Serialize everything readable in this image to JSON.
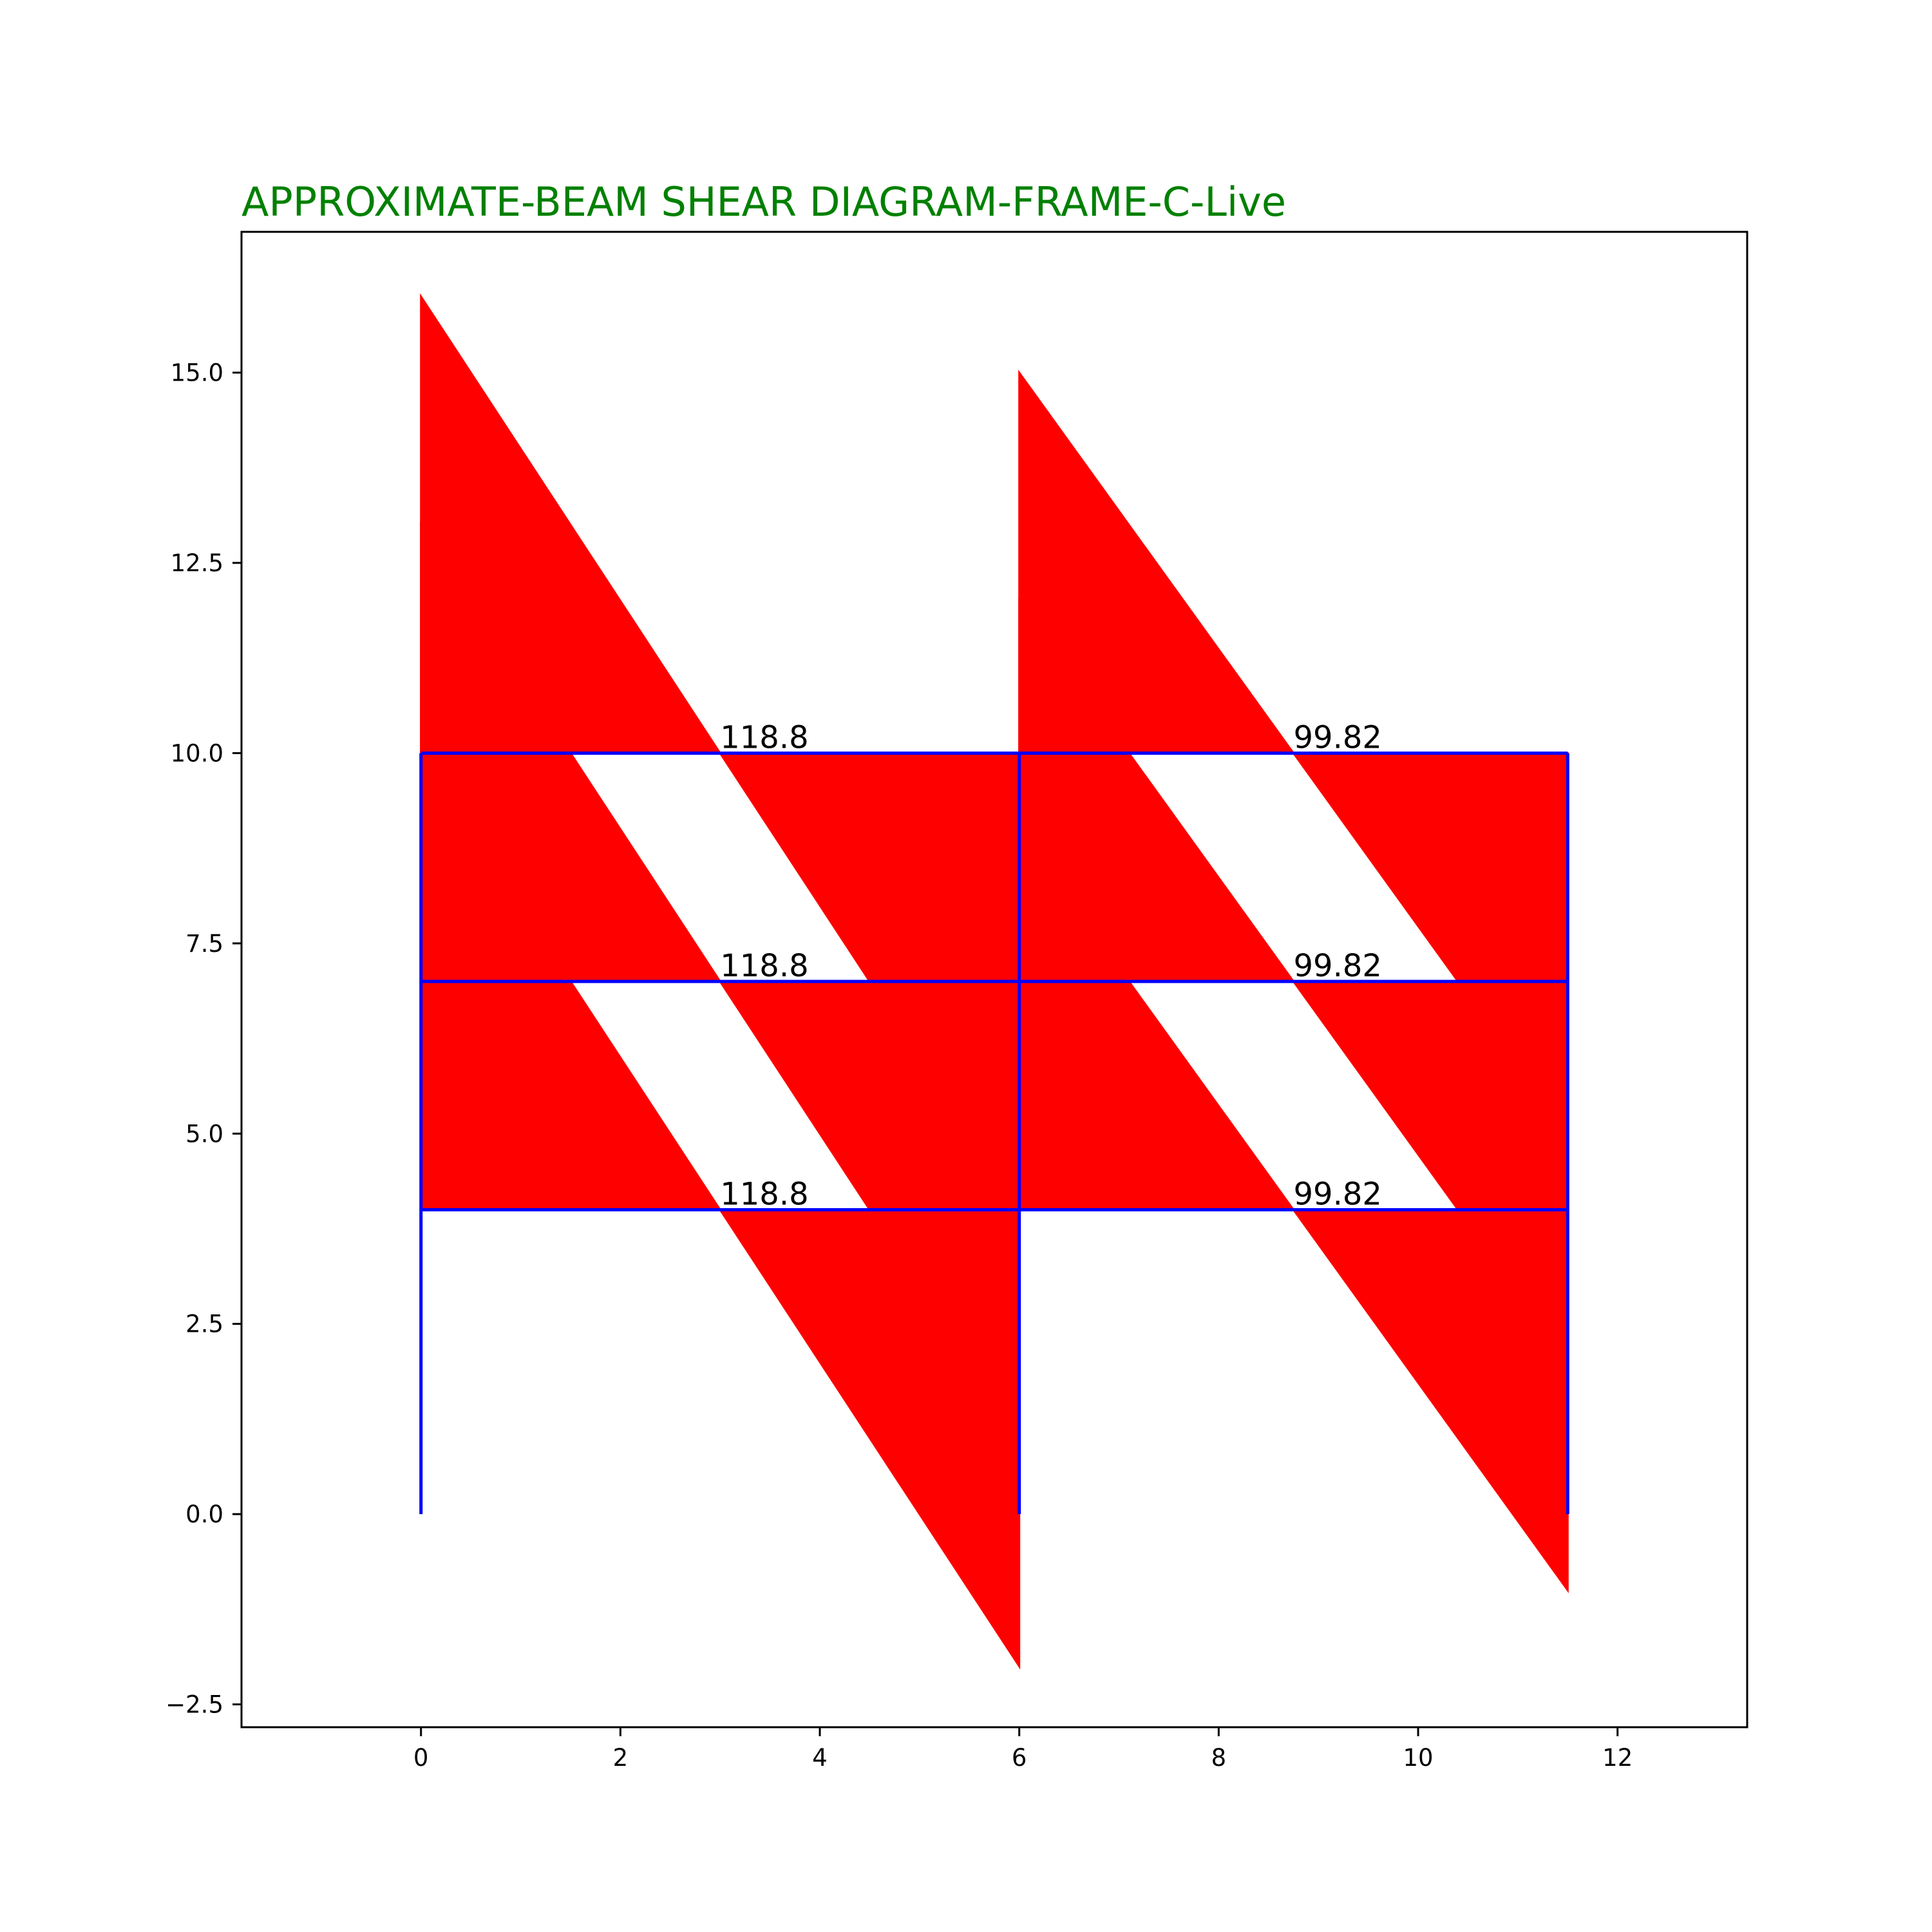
{
  "chart_data": {
    "type": "area",
    "title": "APPROXIMATE-BEAM SHEAR DIAGRAM-FRAME-C-Live",
    "xlabel": "",
    "ylabel": "",
    "xlim": [
      -1.8,
      13.3
    ],
    "ylim": [
      -2.8,
      16.85
    ],
    "x_ticks": [
      0,
      2,
      4,
      6,
      8,
      10,
      12
    ],
    "y_ticks": [
      -2.5,
      0.0,
      2.5,
      5.0,
      7.5,
      10.0,
      12.5,
      15.0
    ],
    "grid": false,
    "colors": {
      "title": "#008000",
      "frame": "#0000ff",
      "shear": "#ff0000"
    },
    "frame": {
      "columns": [
        0,
        6,
        11.5
      ],
      "base": 0,
      "floors": [
        4,
        7,
        10
      ]
    },
    "bays": [
      {
        "start": 0,
        "end": 6,
        "label": "118.8",
        "shear_offset": 6,
        "zero_x": 3.0
      },
      {
        "start": 6,
        "end": 11.5,
        "label": "99.82",
        "shear_offset": 5,
        "zero_x": 8.75
      }
    ],
    "shear_labels": [
      {
        "text": "118.8",
        "x": 3.0,
        "y": 10
      },
      {
        "text": "118.8",
        "x": 3.0,
        "y": 7
      },
      {
        "text": "118.8",
        "x": 3.0,
        "y": 4
      },
      {
        "text": "99.82",
        "x": 8.75,
        "y": 10
      },
      {
        "text": "99.82",
        "x": 8.75,
        "y": 7
      },
      {
        "text": "99.82",
        "x": 8.75,
        "y": 4
      }
    ]
  }
}
